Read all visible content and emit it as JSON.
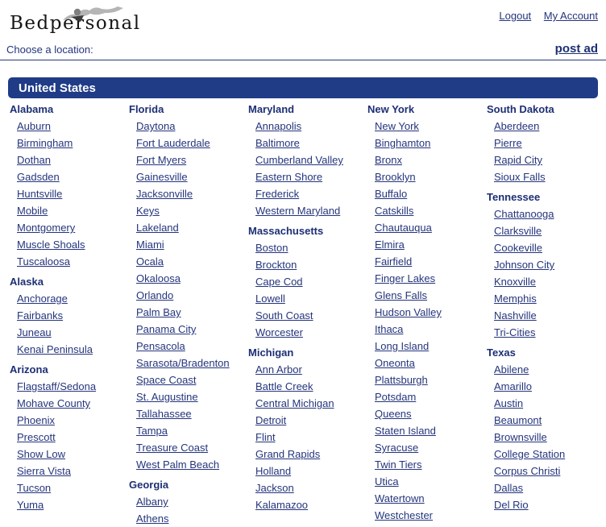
{
  "header": {
    "logo_text": "Bedpersonal",
    "logout_label": "Logout",
    "my_account_label": "My Account"
  },
  "location_bar": {
    "label": "Choose a location:",
    "post_ad_label": "post ad"
  },
  "banner": {
    "title": "United States"
  },
  "colors": {
    "banner_bg": "#203c87",
    "banner_text": "#ffffff",
    "link_navy": "#25357c",
    "header_navy": "#1d2f74",
    "rule_line": "#27397e",
    "logo_figure_gray": "#b5b5b5"
  },
  "icons": {
    "logo_figure": "reclining-figure-icon"
  },
  "columns": [
    {
      "states": [
        {
          "name": "Alabama",
          "cities": [
            "Auburn",
            "Birmingham",
            "Dothan",
            "Gadsden",
            "Huntsville",
            "Mobile",
            "Montgomery",
            "Muscle Shoals",
            "Tuscaloosa"
          ]
        },
        {
          "name": "Alaska",
          "cities": [
            "Anchorage",
            "Fairbanks",
            "Juneau",
            "Kenai Peninsula"
          ]
        },
        {
          "name": "Arizona",
          "cities": [
            "Flagstaff/Sedona",
            "Mohave County",
            "Phoenix",
            "Prescott",
            "Show Low",
            "Sierra Vista",
            "Tucson",
            "Yuma"
          ]
        }
      ]
    },
    {
      "states": [
        {
          "name": "Florida",
          "cities": [
            "Daytona",
            "Fort Lauderdale",
            "Fort Myers",
            "Gainesville",
            "Jacksonville",
            "Keys",
            "Lakeland",
            "Miami",
            "Ocala",
            "Okaloosa",
            "Orlando",
            "Palm Bay",
            "Panama City",
            "Pensacola",
            "Sarasota/Bradenton",
            "Space Coast",
            "St. Augustine",
            "Tallahassee",
            "Tampa",
            "Treasure Coast",
            "West Palm Beach"
          ]
        },
        {
          "name": "Georgia",
          "cities": [
            "Albany",
            "Athens"
          ]
        }
      ]
    },
    {
      "states": [
        {
          "name": "Maryland",
          "cities": [
            "Annapolis",
            "Baltimore",
            "Cumberland Valley",
            "Eastern Shore",
            "Frederick",
            "Western Maryland"
          ]
        },
        {
          "name": "Massachusetts",
          "cities": [
            "Boston",
            "Brockton",
            "Cape Cod",
            "Lowell",
            "South Coast",
            "Worcester"
          ]
        },
        {
          "name": "Michigan",
          "cities": [
            "Ann Arbor",
            "Battle Creek",
            "Central Michigan",
            "Detroit",
            "Flint",
            "Grand Rapids",
            "Holland",
            "Jackson",
            "Kalamazoo"
          ]
        }
      ]
    },
    {
      "states": [
        {
          "name": "New York",
          "cities": [
            "New York",
            "Binghamton",
            "Bronx",
            "Brooklyn",
            "Buffalo",
            "Catskills",
            "Chautauqua",
            "Elmira",
            "Fairfield",
            "Finger Lakes",
            "Glens Falls",
            "Hudson Valley",
            "Ithaca",
            "Long Island",
            "Oneonta",
            "Plattsburgh",
            "Potsdam",
            "Queens",
            "Staten Island",
            "Syracuse",
            "Twin Tiers",
            "Utica",
            "Watertown",
            "Westchester"
          ]
        }
      ]
    },
    {
      "states": [
        {
          "name": "South Dakota",
          "cities": [
            "Aberdeen",
            "Pierre",
            "Rapid City",
            "Sioux Falls"
          ]
        },
        {
          "name": "Tennessee",
          "cities": [
            "Chattanooga",
            "Clarksville",
            "Cookeville",
            "Johnson City",
            "Knoxville",
            "Memphis",
            "Nashville",
            "Tri-Cities"
          ]
        },
        {
          "name": "Texas",
          "cities": [
            "Abilene",
            "Amarillo",
            "Austin",
            "Beaumont",
            "Brownsville",
            "College Station",
            "Corpus Christi",
            "Dallas",
            "Del Rio"
          ]
        }
      ]
    }
  ]
}
